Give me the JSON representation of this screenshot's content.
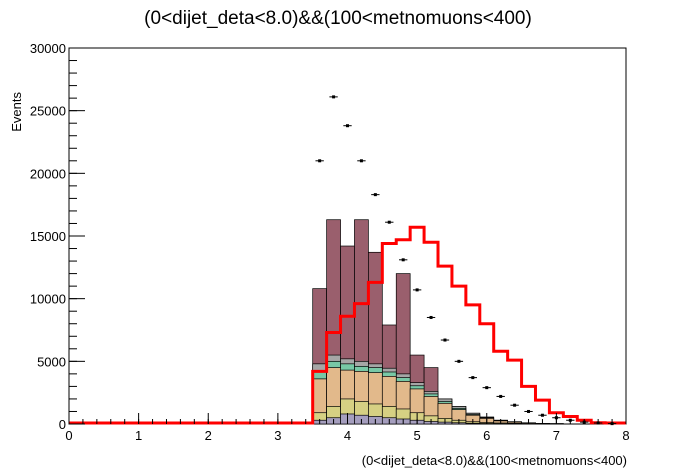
{
  "chart_data": {
    "type": "bar",
    "title": "(0<dijet_deta<8.0)&&(100<metnomuons<400)",
    "xlabel": "(0<dijet_deta<8.0)&&(100<metnomuons<400)",
    "ylabel": "Events",
    "xlim": [
      0,
      8
    ],
    "ylim": [
      0,
      30000
    ],
    "x_ticks": [
      "0",
      "1",
      "2",
      "3",
      "4",
      "5",
      "6",
      "7",
      "8"
    ],
    "y_ticks": [
      "0",
      "5000",
      "10000",
      "15000",
      "20000",
      "25000",
      "30000"
    ],
    "bin_edges": [
      3.5,
      3.7,
      3.9,
      4.1,
      4.3,
      4.5,
      4.7,
      4.9,
      5.1,
      5.3,
      5.5,
      5.7,
      5.9,
      6.1,
      6.3,
      6.5,
      6.7,
      6.9,
      7.1,
      7.3,
      7.5,
      7.7,
      7.9
    ],
    "stack": [
      {
        "color": "#a59ebe",
        "values": [
          300,
          500,
          800,
          700,
          600,
          500,
          400,
          300,
          200,
          150,
          100,
          60,
          40,
          30,
          20,
          10,
          5,
          3,
          2,
          1,
          0,
          0
        ]
      },
      {
        "color": "#d6d083",
        "values": [
          600,
          900,
          1200,
          1100,
          1000,
          900,
          800,
          600,
          450,
          300,
          200,
          120,
          80,
          50,
          30,
          20,
          10,
          5,
          3,
          2,
          0,
          0
        ]
      },
      {
        "color": "#e2b98b",
        "values": [
          2700,
          3100,
          2300,
          2400,
          2500,
          2400,
          2200,
          1900,
          1550,
          1200,
          850,
          520,
          330,
          170,
          100,
          50,
          25,
          12,
          5,
          2,
          0,
          0
        ]
      },
      {
        "color": "#78c8a6",
        "values": [
          600,
          500,
          500,
          400,
          400,
          350,
          300,
          250,
          200,
          150,
          100,
          60,
          40,
          20,
          10,
          5,
          3,
          2,
          1,
          0,
          0,
          0
        ]
      },
      {
        "color": "#a6a6a6",
        "values": [
          600,
          500,
          400,
          400,
          300,
          300,
          300,
          250,
          200,
          200,
          150,
          100,
          60,
          30,
          20,
          10,
          5,
          3,
          1,
          0,
          0,
          0
        ]
      },
      {
        "color": "#9a5f6d",
        "values": [
          6000,
          10800,
          9000,
          11300,
          8900,
          3450,
          8000,
          2200,
          1900,
          0,
          0,
          0,
          0,
          0,
          0,
          0,
          0,
          0,
          0,
          0,
          0,
          0
        ]
      }
    ],
    "signal": {
      "color": "#ff0000",
      "values": [
        4200,
        7300,
        8600,
        9600,
        11300,
        14400,
        14700,
        15700,
        14500,
        12600,
        11000,
        9500,
        8000,
        5800,
        5100,
        3000,
        1900,
        900,
        600,
        300,
        100,
        0
      ]
    },
    "data_points": {
      "color": "#000000",
      "values": [
        21000,
        26100,
        23800,
        21000,
        18300,
        16100,
        13100,
        10700,
        8500,
        6700,
        5000,
        3700,
        2900,
        2200,
        1500,
        1000,
        700,
        500,
        300,
        150,
        80,
        30
      ]
    }
  }
}
